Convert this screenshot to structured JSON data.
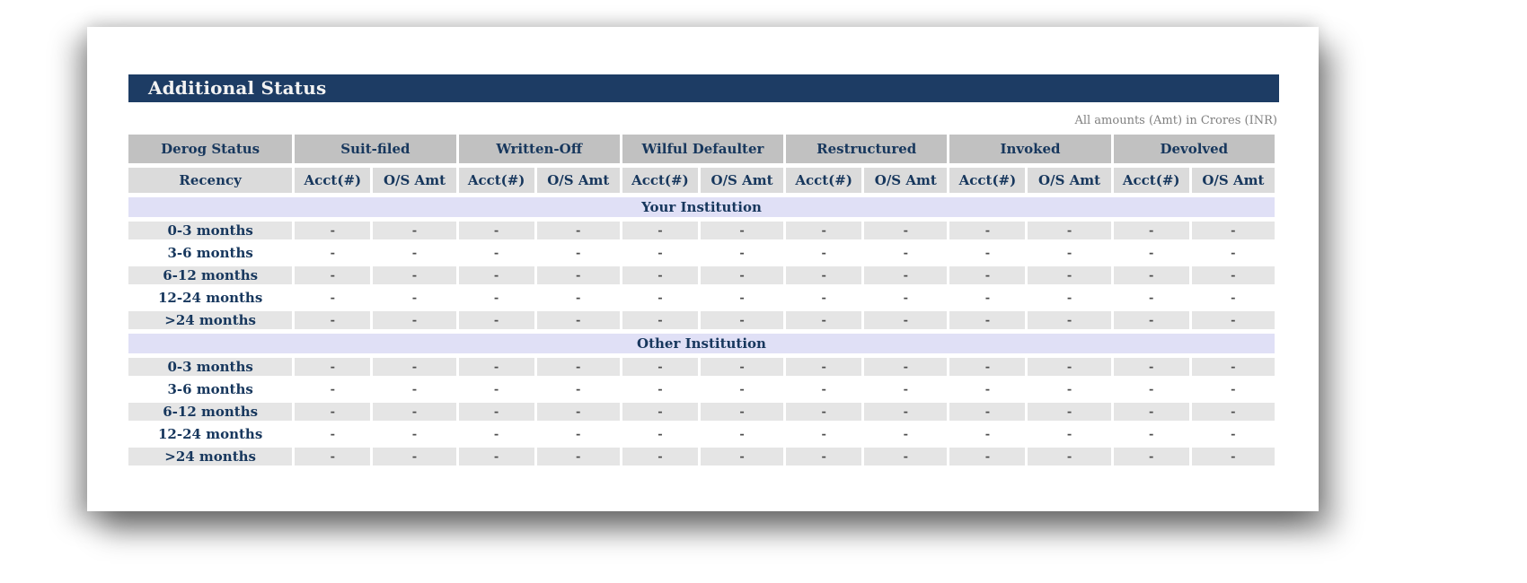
{
  "page": {
    "title": "Additional Status",
    "amounts_note": "All amounts (Amt) in Crores (INR)"
  },
  "colors": {
    "title_bar_bg": "#1d3c64",
    "header_group_bg": "#c1c1c1",
    "header_sub_bg": "#dbdbdb",
    "section_bg": "#e0e0f6",
    "row_alt_bg": "#e5e5e5",
    "navy_text": "#17375d",
    "note_text": "#7f7f7f"
  },
  "table": {
    "corner_label": "Derog Status",
    "recency_label": "Recency",
    "groups": [
      {
        "label": "Suit-filed"
      },
      {
        "label": "Written-Off"
      },
      {
        "label": "Wilful Defaulter"
      },
      {
        "label": "Restructured"
      },
      {
        "label": "Invoked"
      },
      {
        "label": "Devolved"
      }
    ],
    "sub_headers": [
      "Acct(#)",
      "O/S Amt"
    ],
    "sections": [
      {
        "label": "Your Institution",
        "rows": [
          {
            "label": "0-3 months",
            "values": [
              "-",
              "-",
              "-",
              "-",
              "-",
              "-",
              "-",
              "-",
              "-",
              "-",
              "-",
              "-"
            ]
          },
          {
            "label": "3-6 months",
            "values": [
              "-",
              "-",
              "-",
              "-",
              "-",
              "-",
              "-",
              "-",
              "-",
              "-",
              "-",
              "-"
            ]
          },
          {
            "label": "6-12 months",
            "values": [
              "-",
              "-",
              "-",
              "-",
              "-",
              "-",
              "-",
              "-",
              "-",
              "-",
              "-",
              "-"
            ]
          },
          {
            "label": "12-24 months",
            "values": [
              "-",
              "-",
              "-",
              "-",
              "-",
              "-",
              "-",
              "-",
              "-",
              "-",
              "-",
              "-"
            ]
          },
          {
            "label": ">24 months",
            "values": [
              "-",
              "-",
              "-",
              "-",
              "-",
              "-",
              "-",
              "-",
              "-",
              "-",
              "-",
              "-"
            ]
          }
        ]
      },
      {
        "label": "Other Institution",
        "rows": [
          {
            "label": "0-3 months",
            "values": [
              "-",
              "-",
              "-",
              "-",
              "-",
              "-",
              "-",
              "-",
              "-",
              "-",
              "-",
              "-"
            ]
          },
          {
            "label": "3-6 months",
            "values": [
              "-",
              "-",
              "-",
              "-",
              "-",
              "-",
              "-",
              "-",
              "-",
              "-",
              "-",
              "-"
            ]
          },
          {
            "label": "6-12 months",
            "values": [
              "-",
              "-",
              "-",
              "-",
              "-",
              "-",
              "-",
              "-",
              "-",
              "-",
              "-",
              "-"
            ]
          },
          {
            "label": "12-24 months",
            "values": [
              "-",
              "-",
              "-",
              "-",
              "-",
              "-",
              "-",
              "-",
              "-",
              "-",
              "-",
              "-"
            ]
          },
          {
            "label": ">24 months",
            "values": [
              "-",
              "-",
              "-",
              "-",
              "-",
              "-",
              "-",
              "-",
              "-",
              "-",
              "-",
              "-"
            ]
          }
        ]
      }
    ]
  }
}
